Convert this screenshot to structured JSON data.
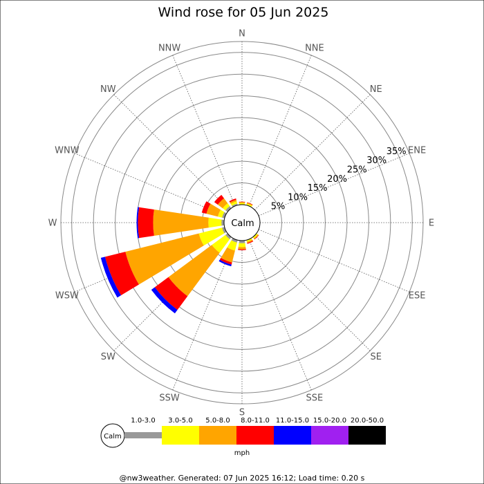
{
  "chart_data": {
    "type": "windrose",
    "title": "Wind rose for 05 Jun 2025",
    "directions": [
      "N",
      "NNE",
      "NE",
      "ENE",
      "E",
      "ESE",
      "SE",
      "SSE",
      "S",
      "SSW",
      "SW",
      "WSW",
      "W",
      "WNW",
      "NW",
      "NNW"
    ],
    "ring_labels": [
      "5%",
      "10%",
      "15%",
      "20%",
      "25%",
      "30%",
      "35%"
    ],
    "ring_values": [
      5,
      10,
      15,
      20,
      25,
      30,
      35
    ],
    "max_percent": 37.5,
    "calm_label": "Calm",
    "unit": "mph",
    "speed_bins": [
      {
        "name": "1.0-3.0",
        "color": "#999999"
      },
      {
        "name": "3.0-5.0",
        "color": "#ffff00"
      },
      {
        "name": "5.0-8.0",
        "color": "#ffa500"
      },
      {
        "name": "8.0-11.0",
        "color": "#ff0000"
      },
      {
        "name": "11.0-15.0",
        "color": "#0000ff"
      },
      {
        "name": "15.0-20.0",
        "color": "#a020f0"
      },
      {
        "name": "20.0-50.0",
        "color": "#000000"
      }
    ],
    "series": [
      {
        "direction": "N",
        "values": [
          0.1,
          0.3,
          0.2,
          0.1,
          0,
          0,
          0
        ]
      },
      {
        "direction": "NNE",
        "values": [
          0.1,
          0.3,
          0.2,
          0.1,
          0,
          0,
          0
        ]
      },
      {
        "direction": "NE",
        "values": [
          0,
          0,
          0,
          0,
          0,
          0,
          0
        ]
      },
      {
        "direction": "ENE",
        "values": [
          0,
          0,
          0,
          0,
          0,
          0,
          0
        ]
      },
      {
        "direction": "E",
        "values": [
          0,
          0,
          0,
          0,
          0,
          0,
          0
        ]
      },
      {
        "direction": "ESE",
        "values": [
          0,
          0,
          0,
          0,
          0,
          0,
          0
        ]
      },
      {
        "direction": "SE",
        "values": [
          0.1,
          0.3,
          0.2,
          0.1,
          0,
          0,
          0
        ]
      },
      {
        "direction": "SSE",
        "values": [
          0.1,
          0.3,
          0.3,
          0.2,
          0,
          0,
          0
        ]
      },
      {
        "direction": "S",
        "values": [
          0.6,
          0.9,
          0.5,
          0.2,
          0,
          0,
          0
        ]
      },
      {
        "direction": "SSW",
        "values": [
          0.6,
          1.9,
          2.8,
          0.5,
          0.4,
          0,
          0
        ]
      },
      {
        "direction": "SW",
        "values": [
          0.6,
          3.9,
          12.4,
          3.9,
          1.0,
          0,
          0
        ]
      },
      {
        "direction": "WSW",
        "values": [
          0.6,
          5.5,
          17.4,
          4.8,
          1.0,
          0,
          0
        ]
      },
      {
        "direction": "W",
        "values": [
          0.6,
          3.0,
          12.7,
          3.5,
          0.3,
          0,
          0
        ]
      },
      {
        "direction": "WNW",
        "values": [
          0.6,
          1.0,
          2.7,
          1.1,
          0,
          0,
          0
        ]
      },
      {
        "direction": "NW",
        "values": [
          0.6,
          0.8,
          1.4,
          1.0,
          0,
          0,
          0
        ]
      },
      {
        "direction": "NNW",
        "values": [
          0.4,
          0.5,
          0.4,
          0.3,
          0,
          0,
          0
        ]
      }
    ],
    "grid": true,
    "legend_position": "bottom"
  },
  "footer": "@nw3weather. Generated: 07 Jun 2025 16:12; Load time: 0.20 s"
}
